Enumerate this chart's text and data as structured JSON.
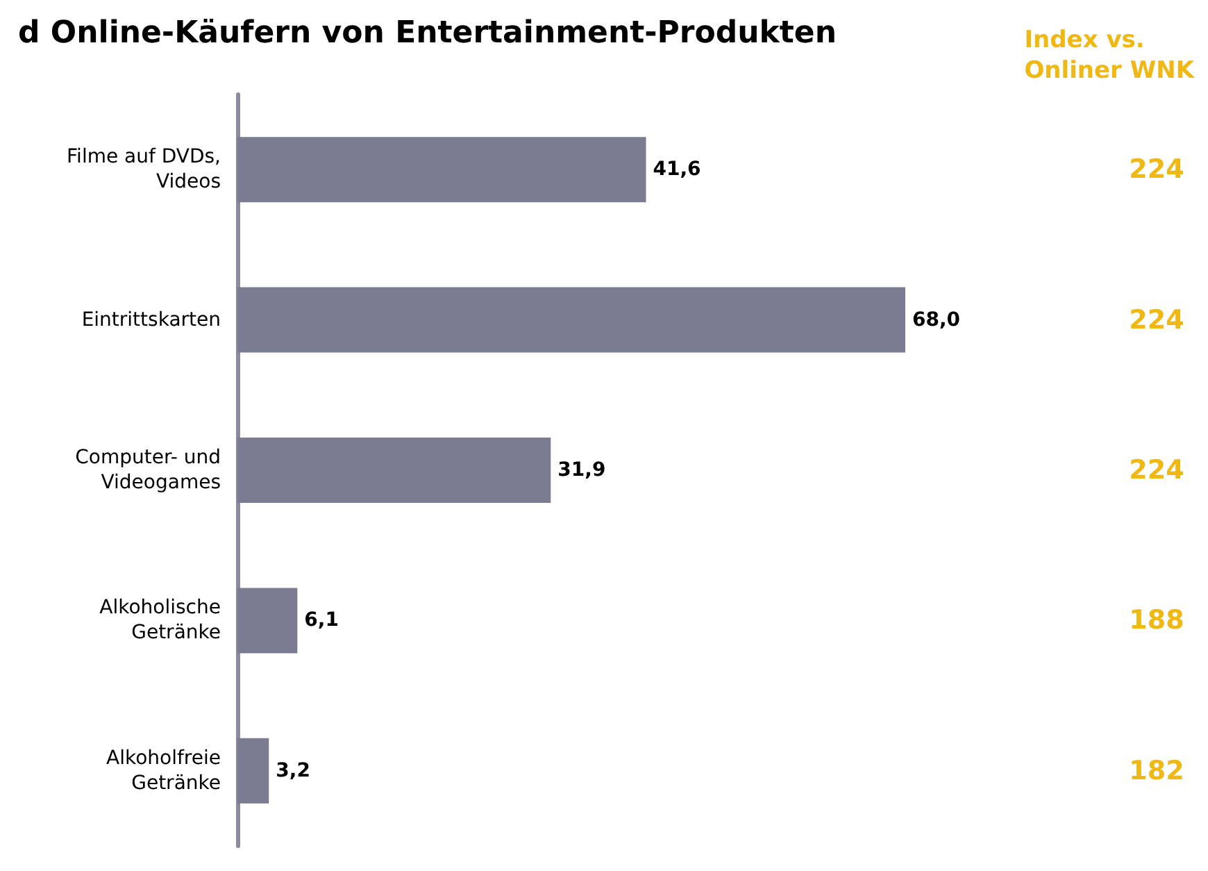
{
  "chart_data": {
    "type": "bar",
    "orientation": "horizontal",
    "title": "d Online-Käufern von Entertainment-Produkten",
    "categories": [
      "Filme auf DVDs,\nVideos",
      "Eintrittskarten",
      "Computer- und\nVideogames",
      "Alkoholische\nGetränke",
      "Alkoholfreie\nGetränke"
    ],
    "values": [
      41.6,
      68.0,
      31.9,
      6.1,
      3.2
    ],
    "color": "#7b7b91",
    "value_labels": [
      "41,6",
      "68,0",
      "31,9",
      "6,1",
      "3,2"
    ],
    "annotations": [
      "Index vs.\nOnliner WNK",
      "224",
      "224",
      "224",
      "188",
      "182"
    ]
  }
}
